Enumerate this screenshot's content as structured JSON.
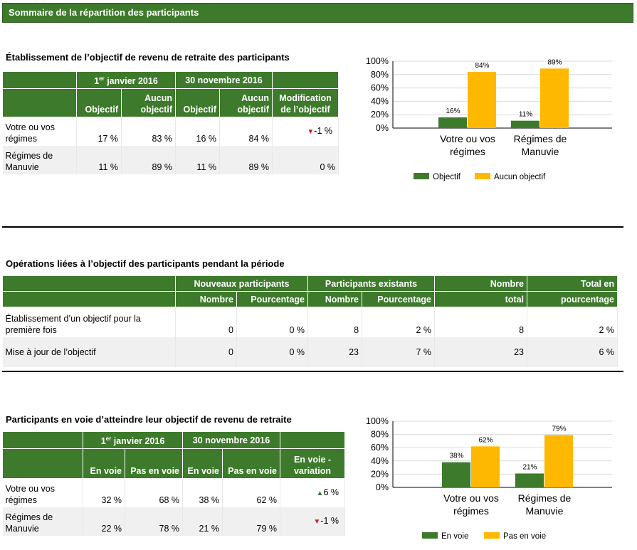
{
  "banner": "Sommaire de la répartition des participants",
  "section1": {
    "title": "Établissement de l’objectif de revenu de retraite des participants",
    "group1": "janvier 2016",
    "group1_num": "1",
    "group1_sup": "er",
    "group2": "30 novembre 2016",
    "cols": [
      "Objectif",
      "Aucun objectif",
      "Objectif",
      "Aucun objectif",
      "Modification de l’objectif"
    ],
    "rows": [
      {
        "label": "Votre ou vos régimes",
        "v": [
          "17 %",
          "83 %",
          "16 %",
          "84 %"
        ],
        "change": "-1 %",
        "trend": "down"
      },
      {
        "label": "Régimes de Manuvie",
        "v": [
          "11 %",
          "89 %",
          "11 %",
          "89 %"
        ],
        "change": "0 %",
        "trend": ""
      }
    ]
  },
  "section2": {
    "title": "Opérations liées à l’objectif des participants pendant la période",
    "group1": "Nouveaux participants",
    "group2": "Participants existants",
    "total_a": "Nombre",
    "total_b": "total",
    "pct_a": "Total en",
    "pct_b": "pourcentage",
    "cols": [
      "Nombre",
      "Pourcentage",
      "Nombre",
      "Pourcentage"
    ],
    "rows": [
      {
        "label": "Établissement d’un objectif pour la première fois",
        "v": [
          "0",
          "0 %",
          "8",
          "2 %",
          "8",
          "2 %"
        ]
      },
      {
        "label": "Mise à jour de l’objectif",
        "v": [
          "0",
          "0 %",
          "23",
          "7 %",
          "23",
          "6 %"
        ]
      }
    ]
  },
  "section3": {
    "title": "Participants en voie d’atteindre leur objectif de revenu de retraite",
    "group1": "janvier 2016",
    "group1_num": "1",
    "group1_sup": "er",
    "group2": "30 novembre 2016",
    "cols": [
      "En voie",
      "Pas en voie",
      "En voie",
      "Pas en voie",
      "En voie - variation"
    ],
    "rows": [
      {
        "label": "Votre ou vos régimes",
        "v": [
          "32 %",
          "68 %",
          "38 %",
          "62 %"
        ],
        "change": "6 %",
        "trend": "up"
      },
      {
        "label": "Régimes de Manuvie",
        "v": [
          "22 %",
          "78 %",
          "21 %",
          "79 %"
        ],
        "change": "-1 %",
        "trend": "down"
      }
    ]
  },
  "chart_data": [
    {
      "type": "bar",
      "categories": [
        "Votre ou vos régimes",
        "Régimes de Manuvie"
      ],
      "category_lines": [
        [
          "Votre ou vos",
          "régimes"
        ],
        [
          "Régimes de",
          "Manuvie"
        ]
      ],
      "series": [
        {
          "name": "Objectif",
          "values": [
            16,
            11
          ],
          "labels": [
            "16%",
            "11%"
          ],
          "color": "#3d7a2b"
        },
        {
          "name": "Aucun objectif",
          "values": [
            84,
            89
          ],
          "labels": [
            "84%",
            "89%"
          ],
          "color": "#ffb800"
        }
      ],
      "yticks": [
        "0%",
        "20%",
        "40%",
        "60%",
        "80%",
        "100%"
      ],
      "ylim": [
        0,
        100
      ],
      "legend": "bottom"
    },
    {
      "type": "bar",
      "categories": [
        "Votre ou vos régimes",
        "Régimes de Manuvie"
      ],
      "category_lines": [
        [
          "Votre ou vos",
          "régimes"
        ],
        [
          "Régimes de",
          "Manuvie"
        ]
      ],
      "series": [
        {
          "name": "En voie",
          "values": [
            38,
            21
          ],
          "labels": [
            "38%",
            "21%"
          ],
          "color": "#3d7a2b"
        },
        {
          "name": "Pas en voie",
          "values": [
            62,
            79
          ],
          "labels": [
            "62%",
            "79%"
          ],
          "color": "#ffb800"
        }
      ],
      "yticks": [
        "0%",
        "20%",
        "40%",
        "60%",
        "80%",
        "100%"
      ],
      "ylim": [
        0,
        100
      ],
      "legend": "bottom"
    }
  ]
}
